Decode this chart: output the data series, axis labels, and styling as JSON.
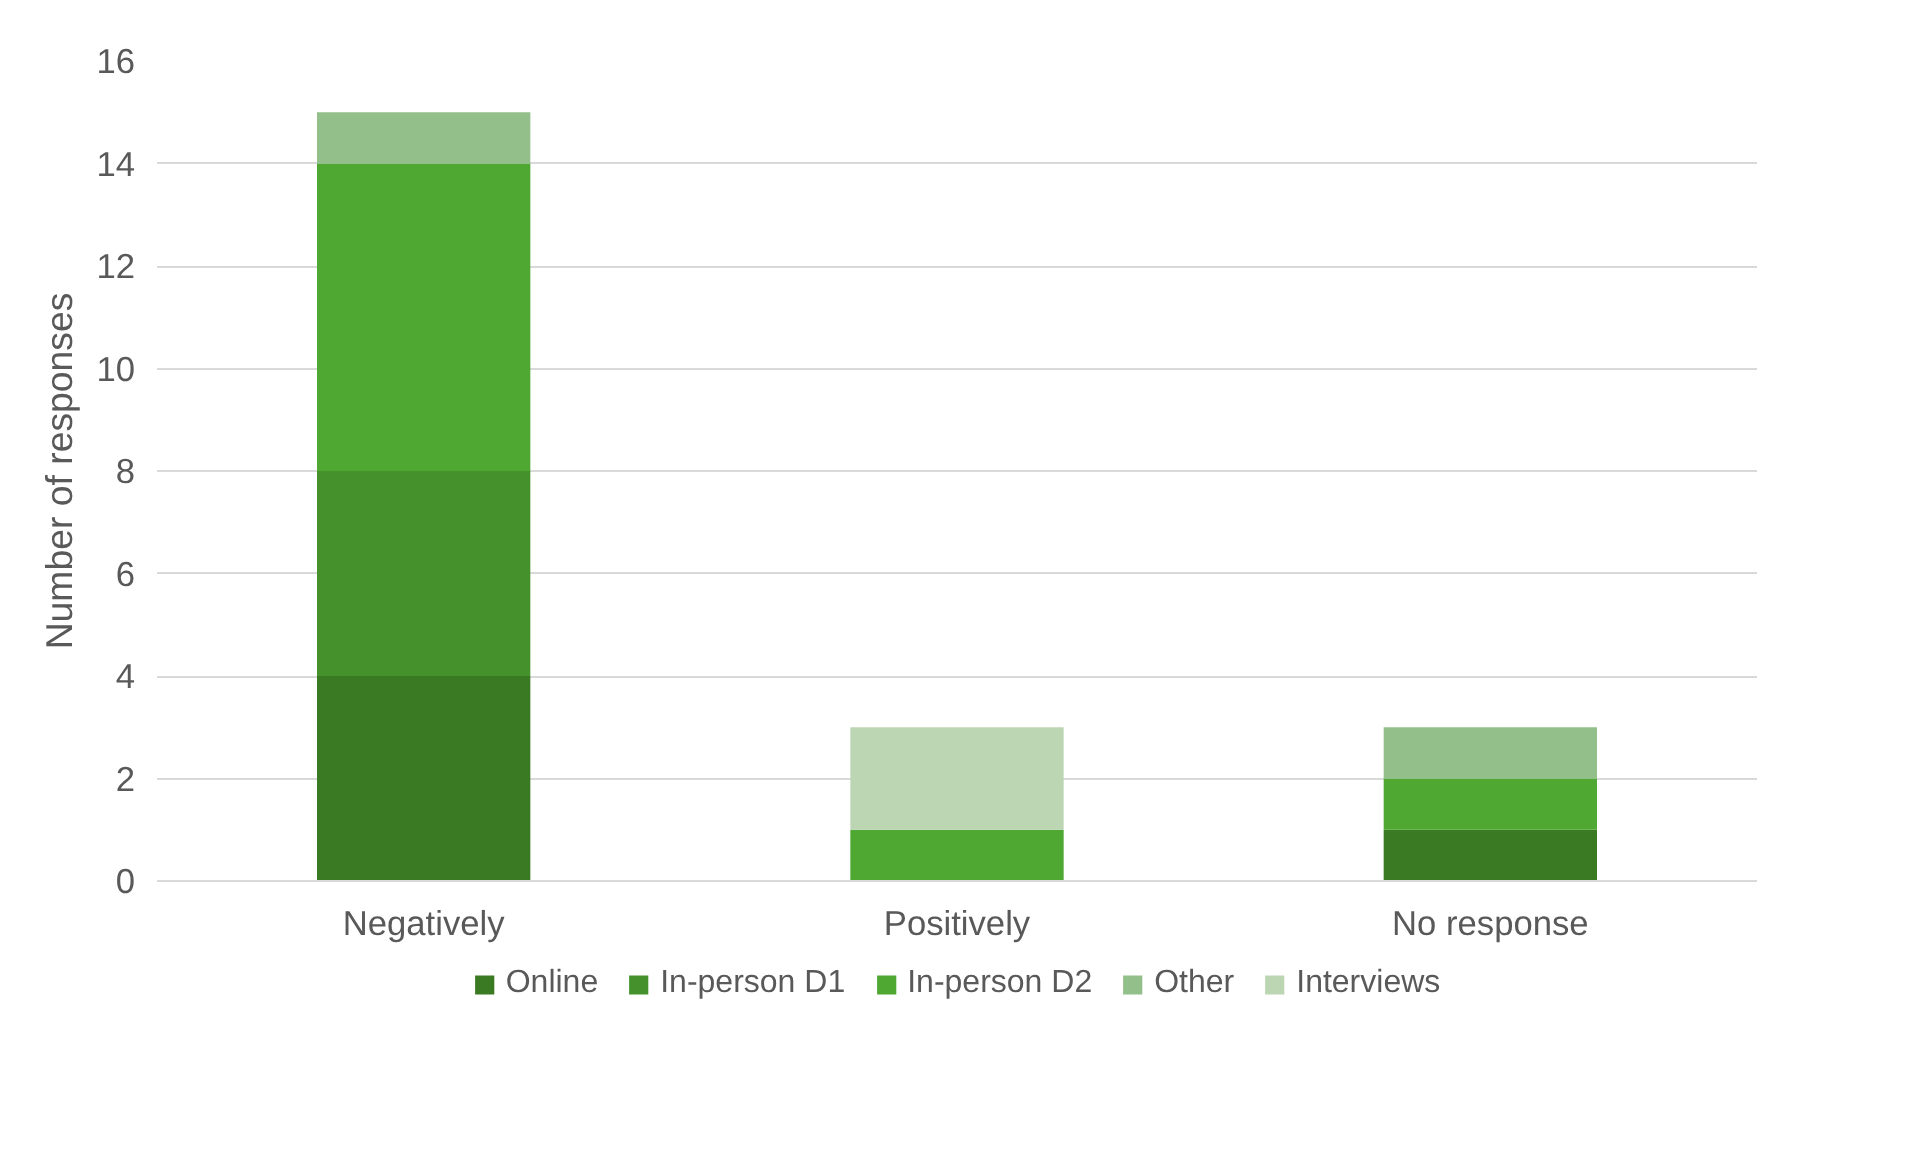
{
  "chart_data": {
    "type": "bar",
    "stacked": true,
    "ylabel": "Number of responses",
    "categories": [
      "Negatively",
      "Positively",
      "No response"
    ],
    "series": [
      {
        "name": "Online",
        "color": "#3a7a22",
        "values": [
          4,
          0,
          1
        ]
      },
      {
        "name": "In-person D1",
        "color": "#45912b",
        "values": [
          4,
          0,
          0
        ]
      },
      {
        "name": "In-person D2",
        "color": "#4ea832",
        "values": [
          6,
          1,
          1
        ]
      },
      {
        "name": "Other",
        "color": "#93c08a",
        "values": [
          1,
          0,
          1
        ]
      },
      {
        "name": "Interviews",
        "color": "#bcd6b4",
        "values": [
          0,
          2,
          0
        ]
      }
    ],
    "ylim": [
      0,
      16
    ],
    "yticks": [
      0,
      2,
      4,
      6,
      8,
      10,
      12,
      14,
      16
    ],
    "grid": "y",
    "legend": "bottom"
  }
}
